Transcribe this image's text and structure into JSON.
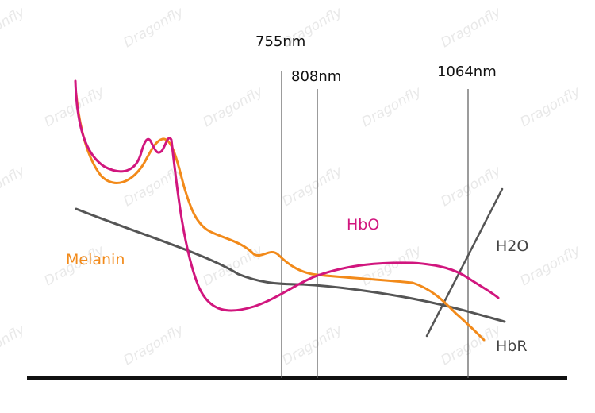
{
  "watermark": "Dragonfly",
  "chart_data": {
    "type": "line",
    "title": "",
    "xlabel": "",
    "ylabel": "",
    "wavelength_markers": [
      {
        "label": "755nm"
      },
      {
        "label": "808nm"
      },
      {
        "label": "1064nm"
      }
    ],
    "series": [
      {
        "name": "Melanin",
        "color": "#f28a1a"
      },
      {
        "name": "HbO",
        "color": "#d1167e"
      },
      {
        "name": "H2O",
        "color": "#555555"
      },
      {
        "name": "HbR",
        "color": "#555555"
      }
    ]
  }
}
